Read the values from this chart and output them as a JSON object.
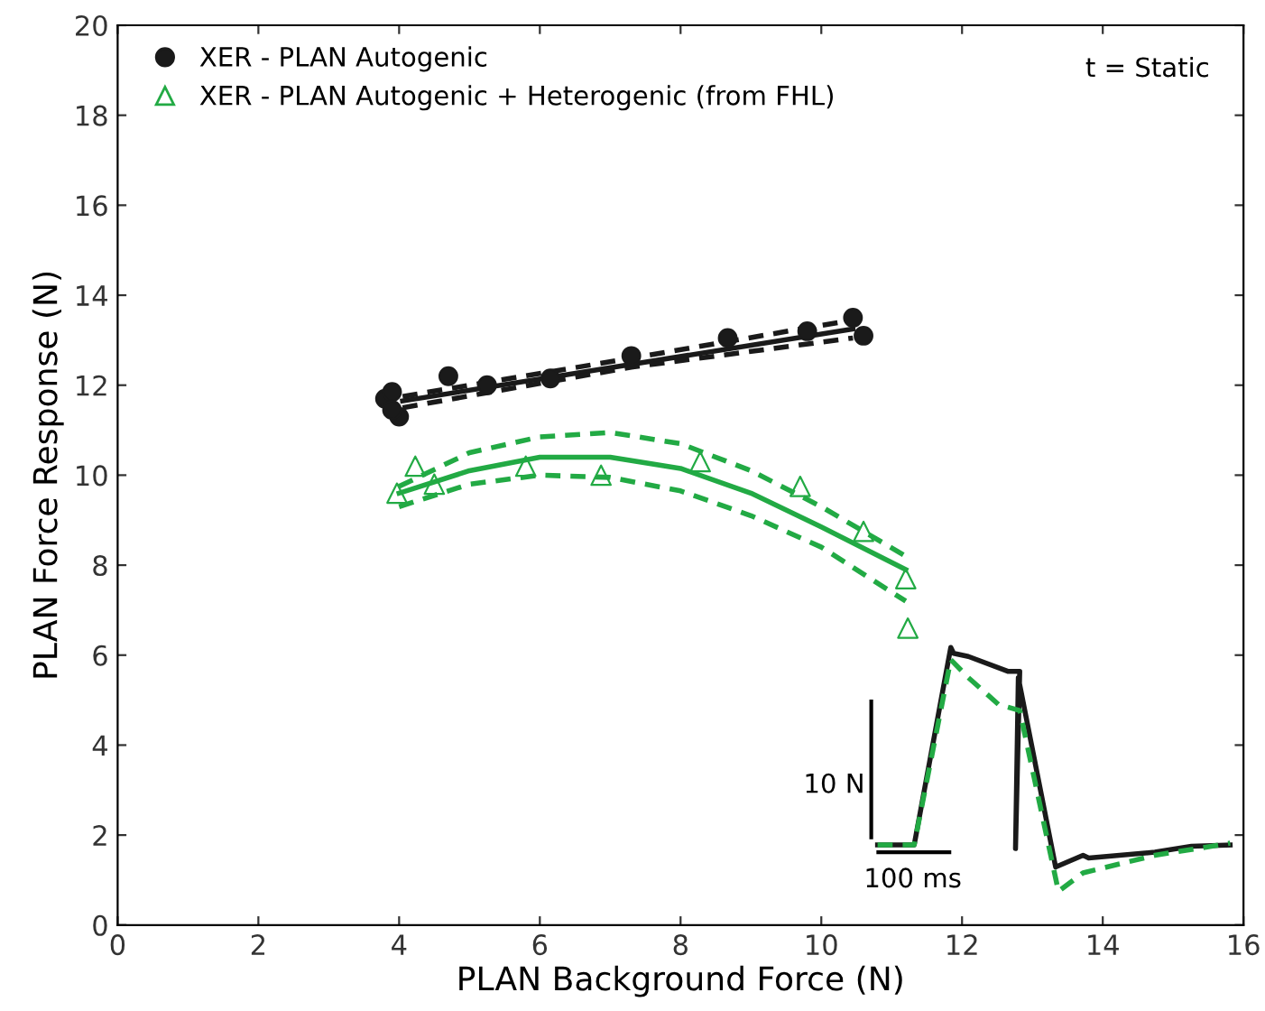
{
  "chart_data": {
    "type": "scatter",
    "xlabel": "PLAN Background Force (N)",
    "ylabel": "PLAN Force Response (N)",
    "xlim": [
      0,
      16
    ],
    "ylim": [
      0,
      20
    ],
    "xticks": [
      0,
      2,
      4,
      6,
      8,
      10,
      12,
      14,
      16
    ],
    "yticks": [
      0,
      2,
      4,
      6,
      8,
      10,
      12,
      14,
      16,
      18,
      20
    ],
    "grid": false,
    "legend": "top left",
    "annotations": [
      "t = Static",
      "10 N",
      "100 ms"
    ],
    "series": [
      {
        "name": "XER - PLAN Autogenic",
        "marker": "circle",
        "color": "#1a1a1a",
        "x": [
          3.8,
          3.9,
          4.0,
          3.9,
          4.7,
          5.25,
          6.15,
          7.3,
          8.67,
          9.8,
          10.45,
          10.6
        ],
        "values": [
          11.7,
          11.85,
          11.3,
          11.45,
          12.2,
          12.0,
          12.15,
          12.65,
          13.05,
          13.2,
          13.5,
          13.1
        ]
      },
      {
        "name": "XER - PLAN Autogenic + Heterogenic (from FHL)",
        "marker": "triangle",
        "color": "#22aa44",
        "x": [
          3.97,
          4.23,
          4.5,
          5.8,
          6.87,
          8.28,
          9.7,
          10.6,
          11.2,
          11.23
        ],
        "values": [
          9.6,
          10.2,
          9.8,
          10.2,
          10.0,
          10.3,
          9.75,
          8.75,
          7.7,
          6.6
        ]
      },
      {
        "type": "line",
        "line_style": "solid",
        "color": "#1a1a1a",
        "x": [
          4.05,
          10.45
        ],
        "values": [
          11.65,
          13.25
        ]
      },
      {
        "type": "line",
        "line_style": "dashed",
        "color": "#1a1a1a",
        "x": [
          4.05,
          7.3,
          10.45
        ],
        "values": [
          11.75,
          12.6,
          13.45
        ]
      },
      {
        "type": "line",
        "line_style": "dashed",
        "color": "#1a1a1a",
        "x": [
          4.05,
          7.3,
          10.45
        ],
        "values": [
          11.5,
          12.4,
          13.05
        ]
      },
      {
        "type": "line",
        "line_style": "solid",
        "color": "#22aa44",
        "x": [
          4,
          5,
          6,
          7,
          8,
          9,
          10,
          11.2
        ],
        "values": [
          9.6,
          10.1,
          10.4,
          10.4,
          10.15,
          9.6,
          8.85,
          7.9
        ]
      },
      {
        "type": "line",
        "line_style": "dashed",
        "color": "#22aa44",
        "x": [
          4,
          5,
          6,
          7,
          8,
          9,
          10,
          11.2
        ],
        "values": [
          9.75,
          10.5,
          10.85,
          10.95,
          10.7,
          10.1,
          9.3,
          8.2
        ]
      },
      {
        "type": "line",
        "line_style": "dashed",
        "color": "#22aa44",
        "x": [
          4,
          5,
          6,
          7,
          8,
          9,
          10,
          11.2
        ],
        "values": [
          9.3,
          9.8,
          10.0,
          9.95,
          9.65,
          9.1,
          8.4,
          7.2
        ]
      },
      {
        "type": "line",
        "line_style": "solid",
        "color": "#1a1a1a",
        "x": [
          10.8,
          11.32,
          11.84,
          11.88,
          12.09,
          12.65,
          12.82,
          12.76,
          12.8,
          13.33,
          13.42,
          13.72,
          13.8,
          14.74,
          15.26,
          15.81
        ],
        "values": [
          1.78,
          1.78,
          6.17,
          6.04,
          5.97,
          5.64,
          5.64,
          1.7,
          5.5,
          1.29,
          1.35,
          1.55,
          1.49,
          1.62,
          1.75,
          1.78
        ]
      },
      {
        "type": "line",
        "line_style": "dashed",
        "color": "#22aa44",
        "x": [
          10.8,
          11.32,
          11.84,
          12.09,
          12.52,
          12.82,
          13.37,
          13.72,
          14.74,
          15.81
        ],
        "values": [
          1.78,
          1.78,
          5.9,
          5.5,
          4.9,
          4.77,
          0.75,
          1.16,
          1.55,
          1.82
        ]
      }
    ]
  }
}
